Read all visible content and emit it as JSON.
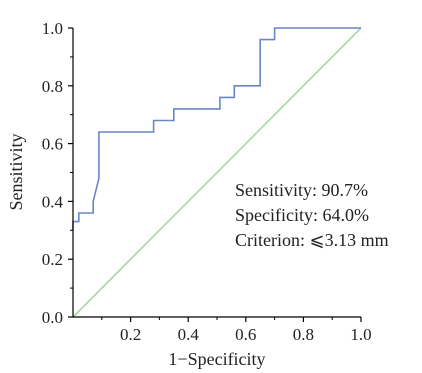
{
  "chart_data": {
    "type": "line",
    "xlabel": "1−Specificity",
    "ylabel": "Sensitivity",
    "xlim": [
      0,
      1
    ],
    "ylim": [
      0,
      1
    ],
    "x_ticks": [
      "0.2",
      "0.4",
      "0.6",
      "0.8",
      "1.0"
    ],
    "y_ticks": [
      "0.0",
      "0.2",
      "0.4",
      "0.6",
      "0.8",
      "1.0"
    ],
    "x_tick_values": [
      0.2,
      0.4,
      0.6,
      0.8,
      1.0
    ],
    "y_tick_values": [
      0.0,
      0.2,
      0.4,
      0.6,
      0.8,
      1.0
    ],
    "grid": false,
    "series": [
      {
        "color": "#6a86c4",
        "x": [
          0.0,
          0.0,
          0.02,
          0.02,
          0.07,
          0.07,
          0.09,
          0.09,
          0.28,
          0.28,
          0.35,
          0.35,
          0.51,
          0.51,
          0.56,
          0.56,
          0.65,
          0.65,
          0.7,
          0.7,
          1.0
        ],
        "y": [
          0.3,
          0.33,
          0.33,
          0.36,
          0.36,
          0.4,
          0.48,
          0.64,
          0.64,
          0.68,
          0.68,
          0.72,
          0.72,
          0.76,
          0.76,
          0.8,
          0.8,
          0.96,
          0.96,
          1.0,
          1.0
        ]
      },
      {
        "color": "#a8d8a0",
        "x": [
          0.0,
          1.0
        ],
        "y": [
          0.0,
          1.0
        ]
      }
    ],
    "annotations": [
      "Sensitivity: 90.7%",
      "Specificity: 64.0%",
      "Criterion: ⩽3.13 mm"
    ]
  }
}
